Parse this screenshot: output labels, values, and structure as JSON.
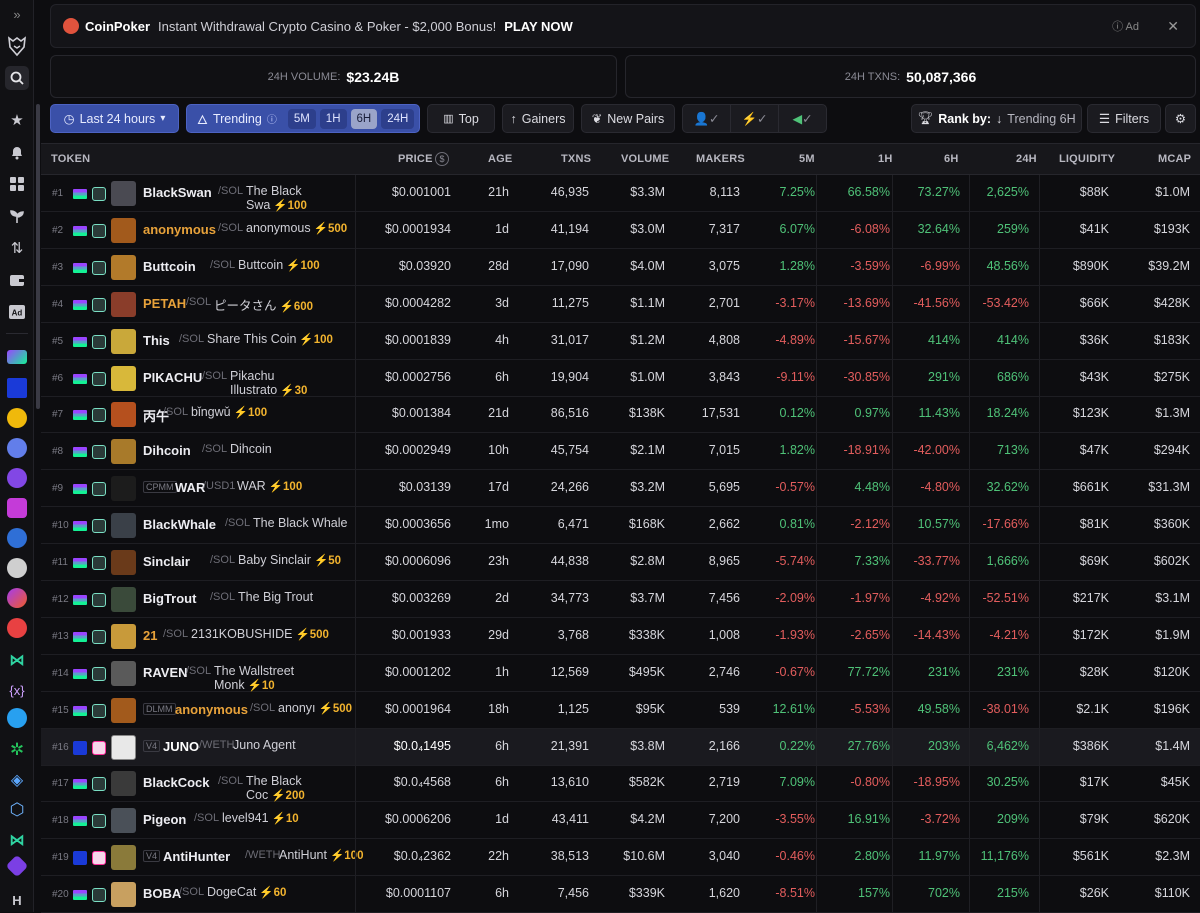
{
  "ad": {
    "brand": "CoinPoker",
    "message": "Instant Withdrawal Crypto Casino & Poker - $2,000 Bonus!",
    "cta": "PLAY NOW",
    "ad_label": "Ad",
    "close": "✕"
  },
  "stats": {
    "volume_label": "24H VOLUME:",
    "volume_value": "$23.24B",
    "txns_label": "24H TXNS:",
    "txns_value": "50,087,366"
  },
  "toolbar": {
    "timeframe": "Last 24 hours",
    "trending": "Trending",
    "chips": [
      "5M",
      "1H",
      "6H",
      "24H"
    ],
    "active_chip": "6H",
    "top": "Top",
    "gainers": "Gainers",
    "new_pairs": "New Pairs",
    "rank_by_label": "Rank by:",
    "rank_by_value": "Trending 6H",
    "filters": "Filters"
  },
  "columns": {
    "token": "TOKEN",
    "price": "PRICE",
    "age": "AGE",
    "txns": "TXNS",
    "volume": "VOLUME",
    "makers": "MAKERS",
    "m5": "5M",
    "h1": "1H",
    "h6": "6H",
    "h24": "24H",
    "liquidity": "LIQUIDITY",
    "mcap": "MCAP"
  },
  "colors": {
    "positive": "#4fc278",
    "negative": "#e35d5d",
    "boost": "#f2b32e",
    "accent": "#3a50a8"
  },
  "rows": [
    {
      "rank": "#1",
      "symbol": "BlackSwan",
      "quote": "/SOL",
      "name": "The Black Swa",
      "boost": "⚡100",
      "price": "$0.001001",
      "age": "21h",
      "txns": "46,935",
      "volume": "$3.3M",
      "makers": "8,113",
      "m5": "7.25%",
      "h1": "66.58%",
      "h6": "73.27%",
      "h24": "2,625%",
      "liquidity": "$88K",
      "mcap": "$1.0M",
      "s5": "pos",
      "s1": "pos",
      "s6": "pos",
      "s24": "pos",
      "avatar": "#4a4a52",
      "chain": "sol",
      "sym_color": "#ededf2"
    },
    {
      "rank": "#2",
      "symbol": "anonymous",
      "quote": "/SOL",
      "name": "anonymous",
      "boost": "⚡500",
      "price": "$0.0001934",
      "age": "1d",
      "txns": "41,194",
      "volume": "$3.0M",
      "makers": "7,317",
      "m5": "6.07%",
      "h1": "-6.08%",
      "h6": "32.64%",
      "h24": "259%",
      "liquidity": "$41K",
      "mcap": "$193K",
      "s5": "pos",
      "s1": "neg",
      "s6": "pos",
      "s24": "pos",
      "avatar": "#a25a1c",
      "chain": "sol",
      "sym_color": "#e8a23a"
    },
    {
      "rank": "#3",
      "symbol": "Buttcoin",
      "quote": "/SOL",
      "name": "Buttcoin",
      "boost": "⚡100",
      "price": "$0.03920",
      "age": "28d",
      "txns": "17,090",
      "volume": "$4.0M",
      "makers": "3,075",
      "m5": "1.28%",
      "h1": "-3.59%",
      "h6": "-6.99%",
      "h24": "48.56%",
      "liquidity": "$890K",
      "mcap": "$39.2M",
      "s5": "pos",
      "s1": "neg",
      "s6": "neg",
      "s24": "pos",
      "avatar": "#b27a2a",
      "chain": "sol",
      "sym_color": "#ededf2"
    },
    {
      "rank": "#4",
      "symbol": "PETAH",
      "quote": "/SOL",
      "name": "ピータさん",
      "boost": "⚡600",
      "price": "$0.0004282",
      "age": "3d",
      "txns": "11,275",
      "volume": "$1.1M",
      "makers": "2,701",
      "m5": "-3.17%",
      "h1": "-13.69%",
      "h6": "-41.56%",
      "h24": "-53.42%",
      "liquidity": "$66K",
      "mcap": "$428K",
      "s5": "neg",
      "s1": "neg",
      "s6": "neg",
      "s24": "neg",
      "avatar": "#8a3d2a",
      "chain": "sol",
      "sym_color": "#e8a23a"
    },
    {
      "rank": "#5",
      "symbol": "This",
      "quote": "/SOL",
      "name": "Share This Coin",
      "boost": "⚡100",
      "price": "$0.0001839",
      "age": "4h",
      "txns": "31,017",
      "volume": "$1.2M",
      "makers": "4,808",
      "m5": "-4.89%",
      "h1": "-15.67%",
      "h6": "414%",
      "h24": "414%",
      "liquidity": "$36K",
      "mcap": "$183K",
      "s5": "neg",
      "s1": "neg",
      "s6": "pos",
      "s24": "pos",
      "avatar": "#c9a83a",
      "chain": "sol",
      "sym_color": "#ededf2"
    },
    {
      "rank": "#6",
      "symbol": "PIKACHU",
      "quote": "/SOL",
      "name": "Pikachu Illustrato",
      "boost": "⚡30",
      "price": "$0.0002756",
      "age": "6h",
      "txns": "19,904",
      "volume": "$1.0M",
      "makers": "3,843",
      "m5": "-9.11%",
      "h1": "-30.85%",
      "h6": "291%",
      "h24": "686%",
      "liquidity": "$43K",
      "mcap": "$275K",
      "s5": "neg",
      "s1": "neg",
      "s6": "pos",
      "s24": "pos",
      "avatar": "#d8b83a",
      "chain": "sol",
      "sym_color": "#ededf2"
    },
    {
      "rank": "#7",
      "symbol": "丙午",
      "quote": "/SOL",
      "name": "bǐngwǔ",
      "boost": "⚡100",
      "price": "$0.001384",
      "age": "21d",
      "txns": "86,516",
      "volume": "$138K",
      "makers": "17,531",
      "m5": "0.12%",
      "h1": "0.97%",
      "h6": "11.43%",
      "h24": "18.24%",
      "liquidity": "$123K",
      "mcap": "$1.3M",
      "s5": "pos",
      "s1": "pos",
      "s6": "pos",
      "s24": "pos",
      "avatar": "#b5501e",
      "chain": "sol",
      "sym_color": "#ededf2"
    },
    {
      "rank": "#8",
      "symbol": "Dihcoin",
      "quote": "/SOL",
      "name": "Dihcoin",
      "boost": "",
      "price": "$0.0002949",
      "age": "10h",
      "txns": "45,754",
      "volume": "$2.1M",
      "makers": "7,015",
      "m5": "1.82%",
      "h1": "-18.91%",
      "h6": "-42.00%",
      "h24": "713%",
      "liquidity": "$47K",
      "mcap": "$294K",
      "s5": "pos",
      "s1": "neg",
      "s6": "neg",
      "s24": "pos",
      "avatar": "#a87a2a",
      "chain": "sol",
      "sym_color": "#ededf2"
    },
    {
      "rank": "#9",
      "symbol": "WAR",
      "quote": "/USD1",
      "name": "WAR",
      "boost": "⚡100",
      "price": "$0.03139",
      "age": "17d",
      "txns": "24,266",
      "volume": "$3.2M",
      "makers": "5,695",
      "m5": "-0.57%",
      "h1": "4.48%",
      "h6": "-4.80%",
      "h24": "32.62%",
      "liquidity": "$661K",
      "mcap": "$31.3M",
      "s5": "neg",
      "s1": "pos",
      "s6": "neg",
      "s24": "pos",
      "avatar": "#1c1c1c",
      "chain": "sol",
      "sym_color": "#ededf2",
      "tag": "CPMM"
    },
    {
      "rank": "#10",
      "symbol": "BlackWhale",
      "quote": "/SOL",
      "name": "The Black Whale",
      "boost": "",
      "price": "$0.0003656",
      "age": "1mo",
      "txns": "6,471",
      "volume": "$168K",
      "makers": "2,662",
      "m5": "0.81%",
      "h1": "-2.12%",
      "h6": "10.57%",
      "h24": "-17.66%",
      "liquidity": "$81K",
      "mcap": "$360K",
      "s5": "pos",
      "s1": "neg",
      "s6": "pos",
      "s24": "neg",
      "avatar": "#3a4048",
      "chain": "sol",
      "sym_color": "#ededf2"
    },
    {
      "rank": "#11",
      "symbol": "Sinclair",
      "quote": "/SOL",
      "name": "Baby Sinclair",
      "boost": "⚡50",
      "price": "$0.0006096",
      "age": "23h",
      "txns": "44,838",
      "volume": "$2.8M",
      "makers": "8,965",
      "m5": "-5.74%",
      "h1": "7.33%",
      "h6": "-33.77%",
      "h24": "1,666%",
      "liquidity": "$69K",
      "mcap": "$602K",
      "s5": "neg",
      "s1": "pos",
      "s6": "neg",
      "s24": "pos",
      "avatar": "#6a3a1a",
      "chain": "sol",
      "sym_color": "#ededf2"
    },
    {
      "rank": "#12",
      "symbol": "BigTrout",
      "quote": "/SOL",
      "name": "The Big Trout",
      "boost": "",
      "price": "$0.003269",
      "age": "2d",
      "txns": "34,773",
      "volume": "$3.7M",
      "makers": "7,456",
      "m5": "-2.09%",
      "h1": "-1.97%",
      "h6": "-4.92%",
      "h24": "-52.51%",
      "liquidity": "$217K",
      "mcap": "$3.1M",
      "s5": "neg",
      "s1": "neg",
      "s6": "neg",
      "s24": "neg",
      "avatar": "#3a4a3a",
      "chain": "sol",
      "sym_color": "#ededf2"
    },
    {
      "rank": "#13",
      "symbol": "21",
      "quote": "/SOL",
      "name": "2131KOBUSHIDE",
      "boost": "⚡500",
      "price": "$0.001933",
      "age": "29d",
      "txns": "3,768",
      "volume": "$338K",
      "makers": "1,008",
      "m5": "-1.93%",
      "h1": "-2.65%",
      "h6": "-14.43%",
      "h24": "-4.21%",
      "liquidity": "$172K",
      "mcap": "$1.9M",
      "s5": "neg",
      "s1": "neg",
      "s6": "neg",
      "s24": "neg",
      "avatar": "#c89a3a",
      "chain": "sol",
      "sym_color": "#e8a23a"
    },
    {
      "rank": "#14",
      "symbol": "RAVEN",
      "quote": "/SOL",
      "name": "The Wallstreet Monk",
      "boost": "⚡10",
      "price": "$0.0001202",
      "age": "1h",
      "txns": "12,569",
      "volume": "$495K",
      "makers": "2,746",
      "m5": "-0.67%",
      "h1": "77.72%",
      "h6": "231%",
      "h24": "231%",
      "liquidity": "$28K",
      "mcap": "$120K",
      "s5": "neg",
      "s1": "pos",
      "s6": "pos",
      "s24": "pos",
      "avatar": "#5a5a5a",
      "chain": "sol",
      "sym_color": "#ededf2"
    },
    {
      "rank": "#15",
      "symbol": "anonymous",
      "quote": "/SOL",
      "name": "anonyı",
      "boost": "⚡500",
      "price": "$0.0001964",
      "age": "18h",
      "txns": "1,125",
      "volume": "$95K",
      "makers": "539",
      "m5": "12.61%",
      "h1": "-5.53%",
      "h6": "49.58%",
      "h24": "-38.01%",
      "liquidity": "$2.1K",
      "mcap": "$196K",
      "s5": "pos",
      "s1": "neg",
      "s6": "pos",
      "s24": "neg",
      "avatar": "#a25a1c",
      "chain": "sol",
      "sym_color": "#e8a23a",
      "tag": "DLMM"
    },
    {
      "rank": "#16",
      "symbol": "JUNO",
      "quote": "/WETH",
      "name": "Juno Agent",
      "boost": "",
      "price": "$0.0₄1495",
      "age": "6h",
      "txns": "21,391",
      "volume": "$3.8M",
      "makers": "2,166",
      "m5": "0.22%",
      "h1": "27.76%",
      "h6": "203%",
      "h24": "6,462%",
      "liquidity": "$386K",
      "mcap": "$1.4M",
      "s5": "pos",
      "s1": "pos",
      "s6": "pos",
      "s24": "pos",
      "avatar": "#e8e8e8",
      "chain": "base",
      "sym_color": "#ffffff",
      "tag": "V4",
      "highlight": true
    },
    {
      "rank": "#17",
      "symbol": "BlackCock",
      "quote": "/SOL",
      "name": "The Black Coc",
      "boost": "⚡200",
      "price": "$0.0₄4568",
      "age": "6h",
      "txns": "13,610",
      "volume": "$582K",
      "makers": "2,719",
      "m5": "7.09%",
      "h1": "-0.80%",
      "h6": "-18.95%",
      "h24": "30.25%",
      "liquidity": "$17K",
      "mcap": "$45K",
      "s5": "pos",
      "s1": "neg",
      "s6": "neg",
      "s24": "pos",
      "avatar": "#3a3a3a",
      "chain": "sol",
      "sym_color": "#ededf2"
    },
    {
      "rank": "#18",
      "symbol": "Pigeon",
      "quote": "/SOL",
      "name": "level941",
      "boost": "⚡10",
      "price": "$0.0006206",
      "age": "1d",
      "txns": "43,411",
      "volume": "$4.2M",
      "makers": "7,200",
      "m5": "-3.55%",
      "h1": "16.91%",
      "h6": "-3.72%",
      "h24": "209%",
      "liquidity": "$79K",
      "mcap": "$620K",
      "s5": "neg",
      "s1": "pos",
      "s6": "neg",
      "s24": "pos",
      "avatar": "#4a5058",
      "chain": "sol",
      "sym_color": "#ededf2"
    },
    {
      "rank": "#19",
      "symbol": "AntiHunter",
      "quote": "/WETH",
      "name": "AntiHunt",
      "boost": "⚡100",
      "price": "$0.0₄2362",
      "age": "22h",
      "txns": "38,513",
      "volume": "$10.6M",
      "makers": "3,040",
      "m5": "-0.46%",
      "h1": "2.80%",
      "h6": "11.97%",
      "h24": "11,176%",
      "liquidity": "$561K",
      "mcap": "$2.3M",
      "s5": "neg",
      "s1": "pos",
      "s6": "pos",
      "s24": "pos",
      "avatar": "#8a7a3a",
      "chain": "base",
      "sym_color": "#ededf2",
      "tag": "V4"
    },
    {
      "rank": "#20",
      "symbol": "BOBA",
      "quote": "/SOL",
      "name": "DogeCat",
      "boost": "⚡60",
      "price": "$0.0001107",
      "age": "6h",
      "txns": "7,456",
      "volume": "$339K",
      "makers": "1,620",
      "m5": "-8.51%",
      "h1": "157%",
      "h6": "702%",
      "h24": "215%",
      "liquidity": "$26K",
      "mcap": "$110K",
      "s5": "neg",
      "s1": "pos",
      "s6": "pos",
      "s24": "pos",
      "avatar": "#c8a060",
      "chain": "sol",
      "sym_color": "#ededf2"
    }
  ]
}
